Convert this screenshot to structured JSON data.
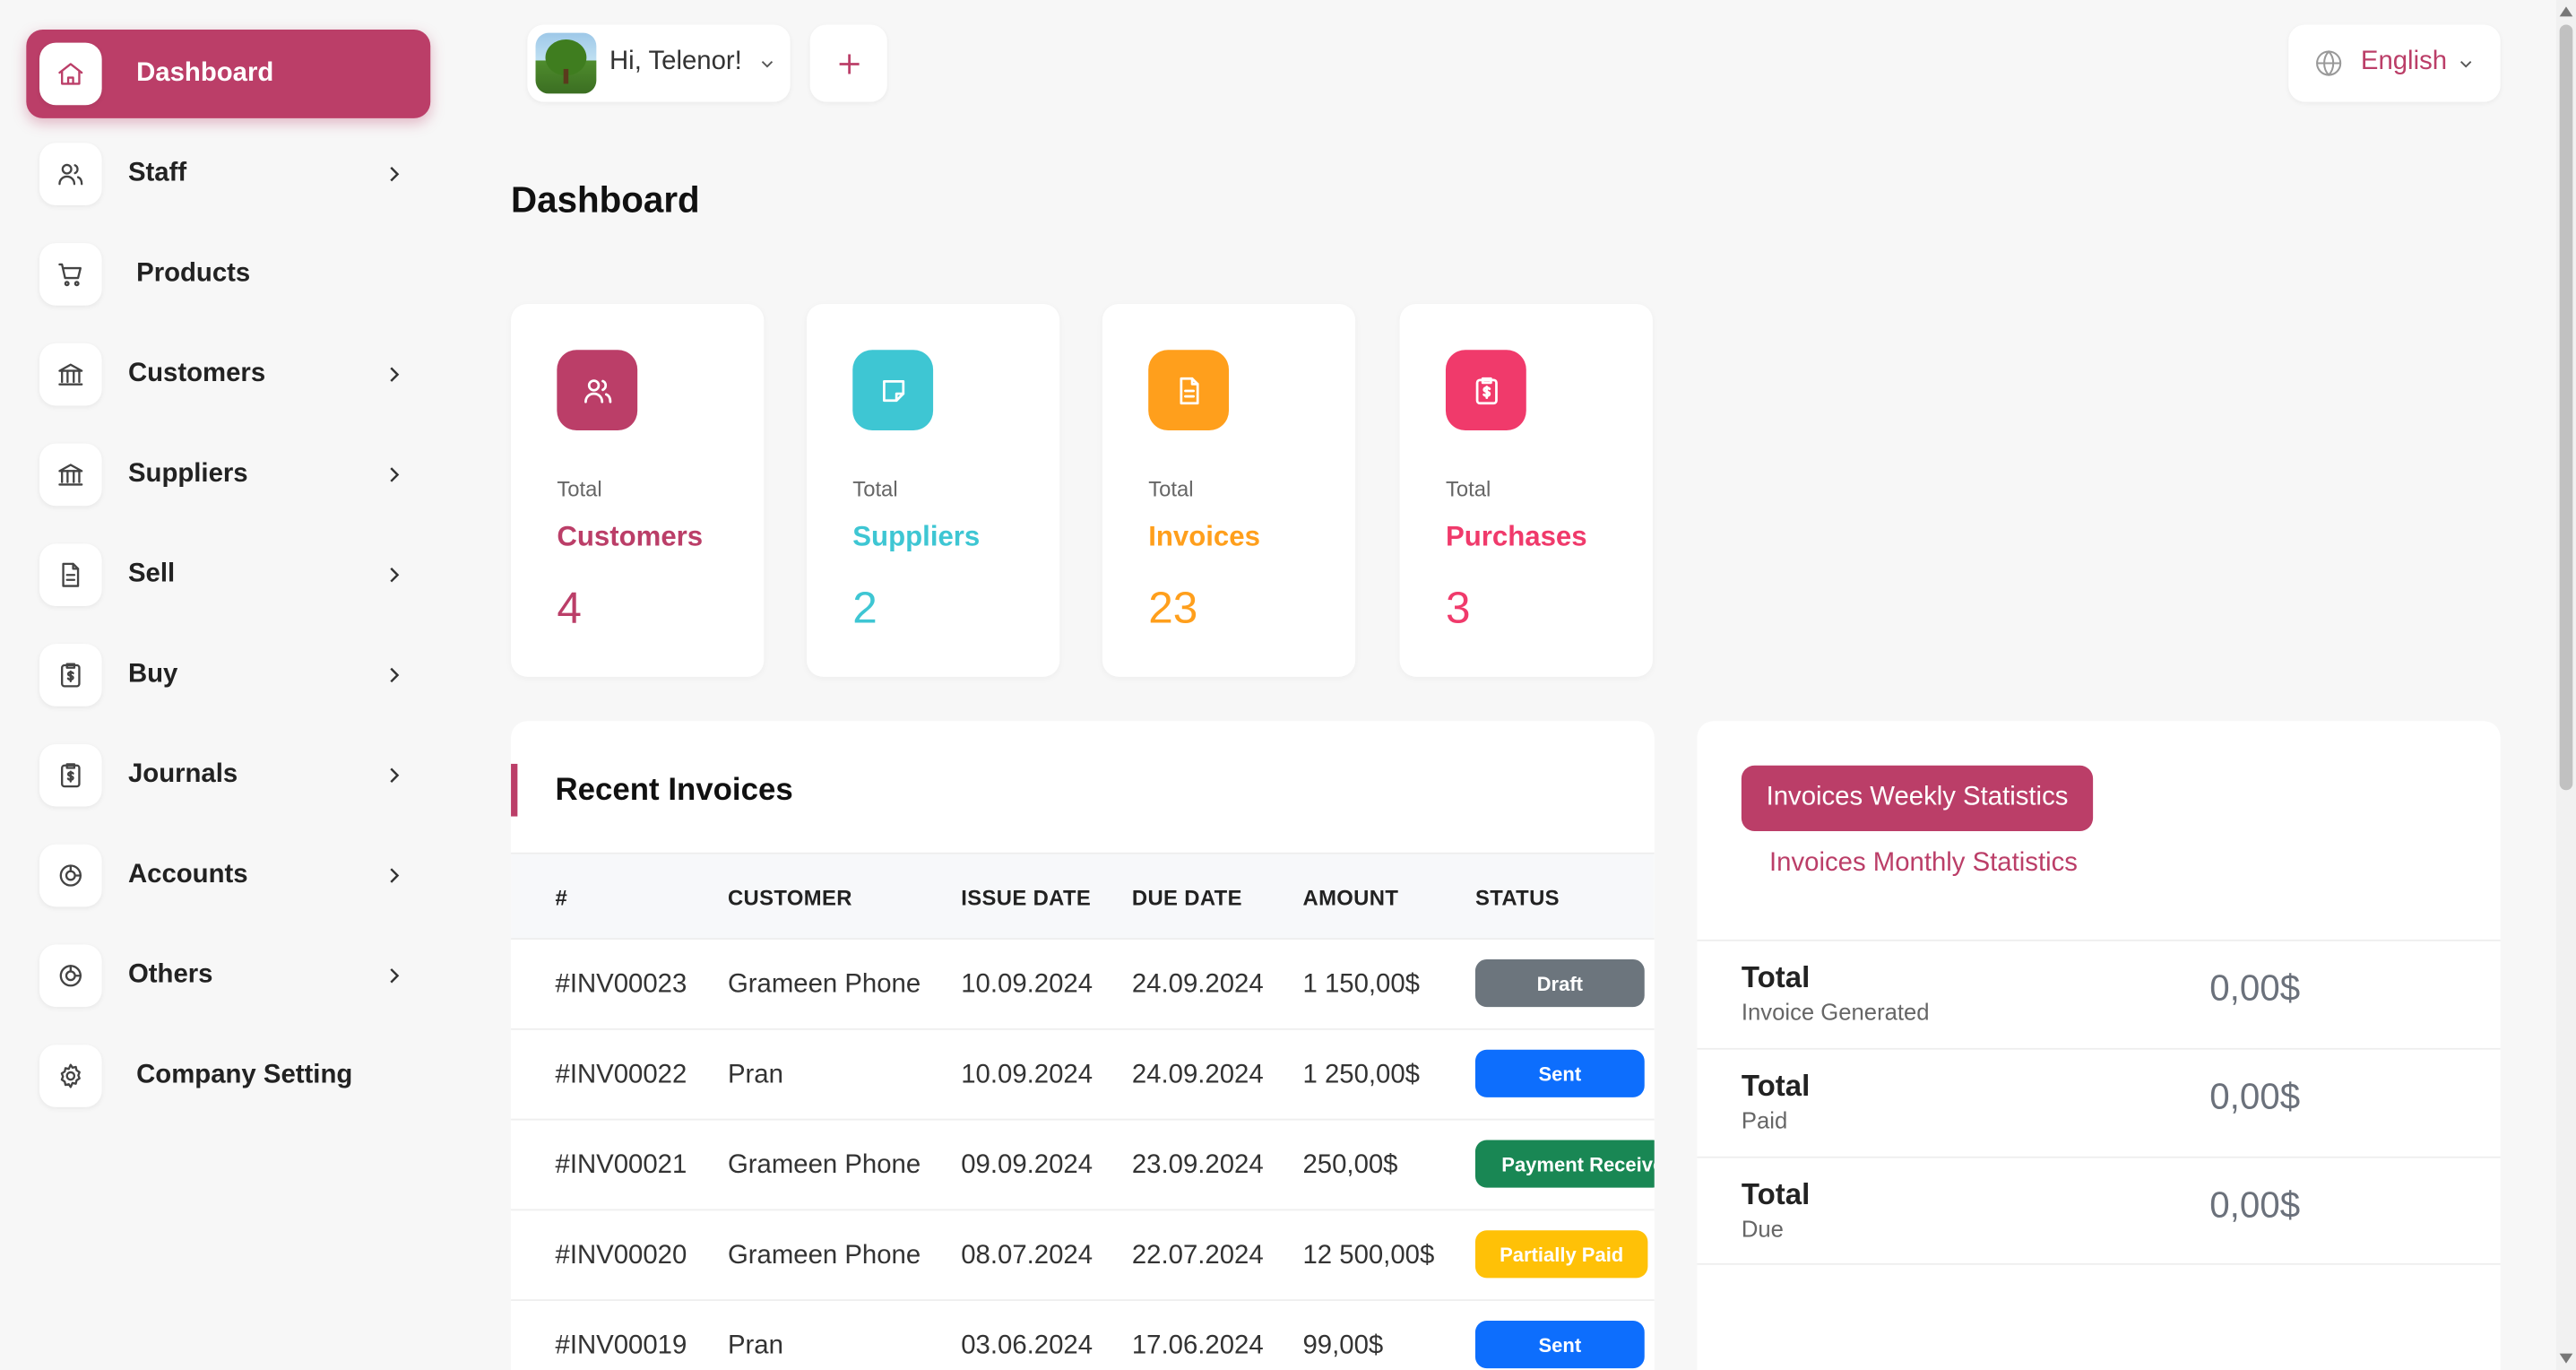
{
  "sidebar": {
    "items": [
      {
        "label": "Dashboard",
        "icon": "home-icon",
        "active": true,
        "expandable": false
      },
      {
        "label": "Staff",
        "icon": "users-icon",
        "active": false,
        "expandable": true
      },
      {
        "label": "Products",
        "icon": "cart-icon",
        "active": false,
        "expandable": false
      },
      {
        "label": "Customers",
        "icon": "bank-icon",
        "active": false,
        "expandable": true
      },
      {
        "label": "Suppliers",
        "icon": "bank-icon",
        "active": false,
        "expandable": true
      },
      {
        "label": "Sell",
        "icon": "document-icon",
        "active": false,
        "expandable": true
      },
      {
        "label": "Buy",
        "icon": "receipt-icon",
        "active": false,
        "expandable": true
      },
      {
        "label": "Journals",
        "icon": "receipt-icon",
        "active": false,
        "expandable": true
      },
      {
        "label": "Accounts",
        "icon": "chart-ring-icon",
        "active": false,
        "expandable": true
      },
      {
        "label": "Others",
        "icon": "chart-ring-icon",
        "active": false,
        "expandable": true
      },
      {
        "label": "Company Setting",
        "icon": "gear-icon",
        "active": false,
        "expandable": false
      }
    ]
  },
  "topbar": {
    "greeting": "Hi, Telenor!",
    "language": "English"
  },
  "page": {
    "title": "Dashboard"
  },
  "stats": [
    {
      "caption": "Total",
      "label": "Customers",
      "value": "4",
      "color": "#bb3e68"
    },
    {
      "caption": "Total",
      "label": "Suppliers",
      "value": "2",
      "color": "#3ec6d3"
    },
    {
      "caption": "Total",
      "label": "Invoices",
      "value": "23",
      "color": "#ff9f1c"
    },
    {
      "caption": "Total",
      "label": "Purchases",
      "value": "3",
      "color": "#f03a6b"
    }
  ],
  "invoices": {
    "title": "Recent Invoices",
    "columns": [
      "#",
      "CUSTOMER",
      "ISSUE DATE",
      "DUE DATE",
      "AMOUNT",
      "STATUS"
    ],
    "rows": [
      {
        "id": "#INV00023",
        "customer": "Grameen Phone",
        "issue": "10.09.2024",
        "due": "24.09.2024",
        "amount": "1 150,00$",
        "status": "Draft",
        "status_color": "#6c757d"
      },
      {
        "id": "#INV00022",
        "customer": "Pran",
        "issue": "10.09.2024",
        "due": "24.09.2024",
        "amount": "1 250,00$",
        "status": "Sent",
        "status_color": "#0d6efd"
      },
      {
        "id": "#INV00021",
        "customer": "Grameen Phone",
        "issue": "09.09.2024",
        "due": "23.09.2024",
        "amount": "250,00$",
        "status": "Payment Received",
        "status_color": "#198754"
      },
      {
        "id": "#INV00020",
        "customer": "Grameen Phone",
        "issue": "08.07.2024",
        "due": "22.07.2024",
        "amount": "12 500,00$",
        "status": "Partially Paid",
        "status_color": "#ffc107"
      },
      {
        "id": "#INV00019",
        "customer": "Pran",
        "issue": "03.06.2024",
        "due": "17.06.2024",
        "amount": "99,00$",
        "status": "Sent",
        "status_color": "#0d6efd"
      }
    ]
  },
  "statistics": {
    "tab_weekly": "Invoices Weekly Statistics",
    "tab_monthly": "Invoices Monthly Statistics",
    "rows": [
      {
        "label": "Total",
        "sub": "Invoice Generated",
        "value": "0,00$"
      },
      {
        "label": "Total",
        "sub": "Paid",
        "value": "0,00$"
      },
      {
        "label": "Total",
        "sub": "Due",
        "value": "0,00$"
      }
    ]
  },
  "colors": {
    "accent": "#bb3e68"
  }
}
